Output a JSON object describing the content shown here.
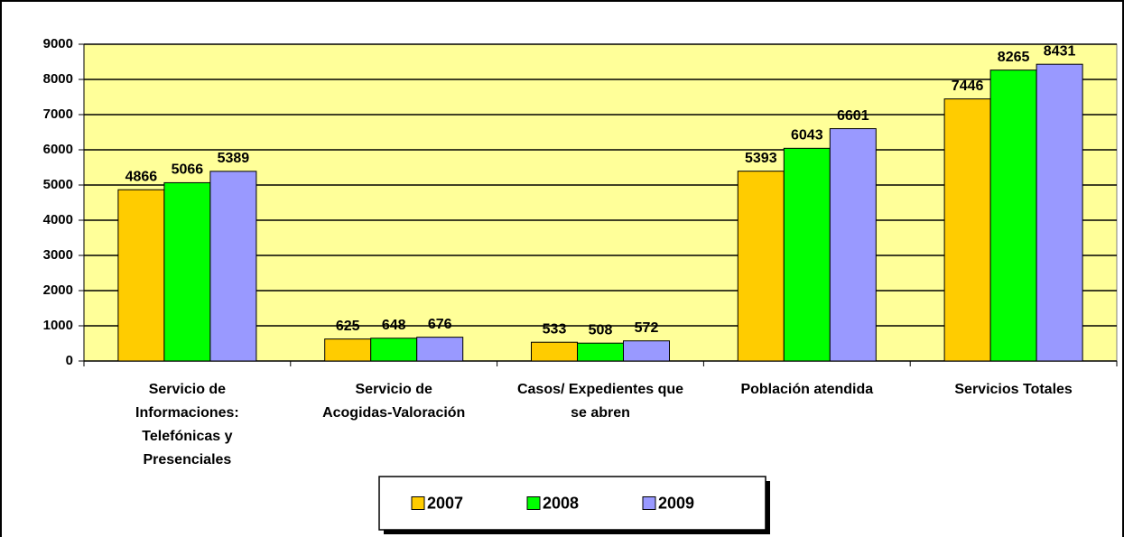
{
  "chart_data": {
    "type": "bar",
    "categories": [
      "Servicio de Informaciones: Telefónicas y Presenciales",
      "Servicio de Acogidas-Valoración",
      "Casos/ Expedientes que se abren",
      "Población atendida",
      "Servicios Totales"
    ],
    "series": [
      {
        "name": "2007",
        "color": "#ffcc00",
        "values": [
          4866,
          625,
          533,
          5393,
          7446
        ]
      },
      {
        "name": "2008",
        "color": "#00ff00",
        "values": [
          5066,
          648,
          508,
          6043,
          8265
        ]
      },
      {
        "name": "2009",
        "color": "#9999ff",
        "values": [
          5389,
          676,
          572,
          6601,
          8431
        ]
      }
    ],
    "ylim": [
      0,
      9000
    ],
    "yticks": [
      0,
      1000,
      2000,
      3000,
      4000,
      5000,
      6000,
      7000,
      8000,
      9000
    ],
    "grid": true,
    "legend": "bottom"
  }
}
